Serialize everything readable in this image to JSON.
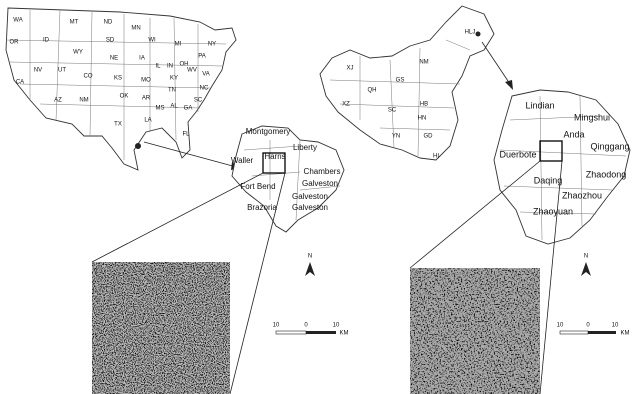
{
  "us_map": {
    "labels": [
      "WA",
      "MT",
      "ND",
      "MN",
      "OR",
      "ID",
      "SD",
      "WI",
      "MI",
      "NY",
      "WY",
      "NE",
      "IA",
      "PA",
      "NV",
      "UT",
      "CO",
      "IL",
      "IN",
      "OH",
      "VA",
      "CA",
      "KS",
      "MO",
      "KY",
      "WV",
      "NC",
      "AZ",
      "NM",
      "OK",
      "AR",
      "TN",
      "SC",
      "MS",
      "AL",
      "GA",
      "TX",
      "LA",
      "FL"
    ]
  },
  "houston_map": {
    "labels": [
      "Montgomery",
      "Liberty",
      "Waller",
      "Harris",
      "Chambers",
      "Galveston",
      "Fort Bend",
      "Galveston",
      "Brazoria",
      "Galveston"
    ]
  },
  "china_map": {
    "labels": [
      "HLJ",
      "XJ",
      "NM",
      "GS",
      "QH",
      "XZ",
      "SC",
      "HB",
      "HN",
      "GD",
      "YN",
      "HI"
    ]
  },
  "daqing_map": {
    "labels": [
      "Lindian",
      "Mingshui",
      "Anda",
      "Qinggang",
      "Duerbote",
      "Daqing",
      "Zhaodong",
      "Zhaozhou",
      "Zhaoyuan"
    ]
  },
  "scale_bars": [
    {
      "labels": [
        "10",
        "0",
        "10",
        "KM"
      ]
    },
    {
      "labels": [
        "10",
        "0",
        "10",
        "KM"
      ]
    }
  ],
  "north_arrows": [
    {
      "label": "N"
    },
    {
      "label": "N"
    }
  ]
}
